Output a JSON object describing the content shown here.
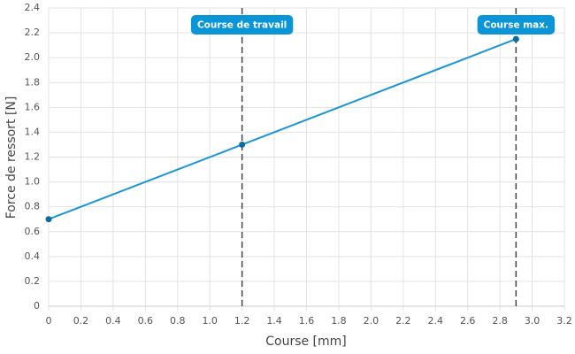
{
  "chart_data": {
    "type": "line",
    "x_label": "Course [mm]",
    "y_label": "Force de ressort [N]",
    "x": [
      0,
      1.2,
      2.9
    ],
    "series": [
      {
        "color": "#1a96d4",
        "marker_color": "#0e6c9c",
        "values": [
          0.7,
          1.3,
          2.15
        ]
      }
    ],
    "xlim": [
      0,
      3.2
    ],
    "xticks": [
      0,
      0.2,
      0.4,
      0.6,
      0.8,
      {
        "value": 1,
        "label": "1.0"
      },
      1.2,
      1.4,
      1.6,
      1.8,
      {
        "value": 2,
        "label": "2.0"
      },
      2.2,
      2.4,
      2.6,
      2.8,
      {
        "value": 3,
        "label": "3.0"
      },
      3.2
    ],
    "ylim": [
      0,
      2.4
    ],
    "yticks": [
      0,
      0.2,
      0.4,
      0.6,
      0.8,
      {
        "value": 1,
        "label": "1.0"
      },
      1.2,
      1.4,
      1.6,
      1.8,
      {
        "value": 2,
        "label": "2.0"
      },
      2.2,
      2.4
    ],
    "grid": true,
    "annotations": [
      {
        "x": 1.2,
        "label": "Course de travail"
      },
      {
        "x": 2.9,
        "label": "Course max."
      }
    ],
    "annotation_color": "#0a96d6"
  }
}
